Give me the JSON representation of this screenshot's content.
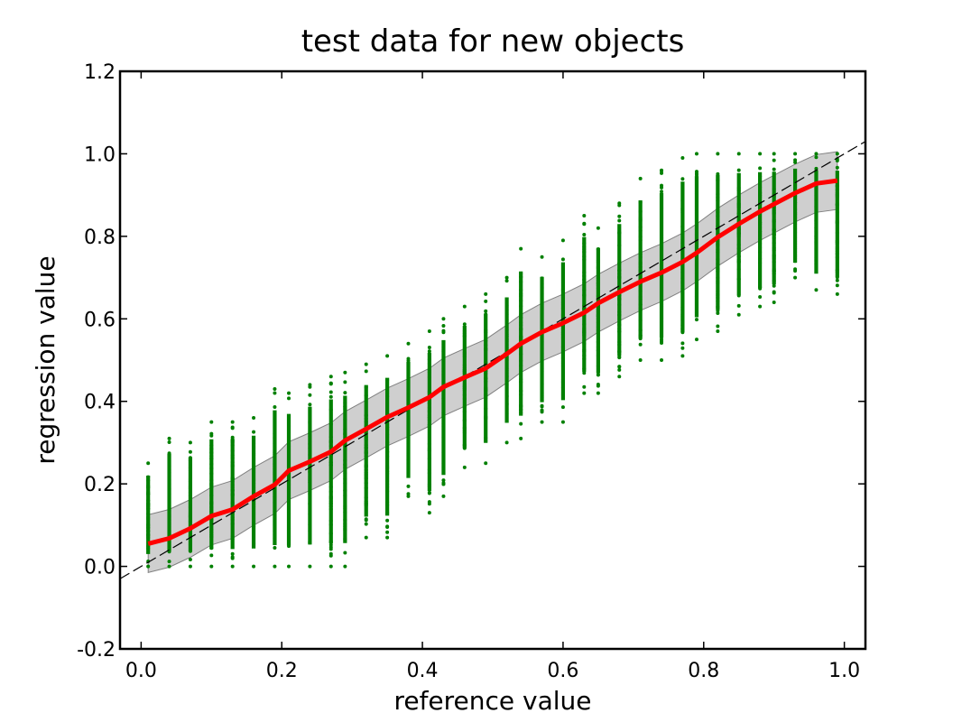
{
  "chart_data": {
    "type": "scatter",
    "title": "test data for new objects",
    "xlabel": "reference value",
    "ylabel": "regression value",
    "xlim": [
      -0.03,
      1.03
    ],
    "ylim": [
      -0.2,
      1.2
    ],
    "xticks": [
      0.0,
      0.2,
      0.4,
      0.6,
      0.8,
      1.0
    ],
    "yticks": [
      -0.2,
      0.0,
      0.2,
      0.4,
      0.6,
      0.8,
      1.0,
      1.2
    ],
    "xtick_labels": [
      "0.0",
      "0.2",
      "0.4",
      "0.6",
      "0.8",
      "1.0"
    ],
    "ytick_labels": [
      "-0.2",
      "0.0",
      "0.2",
      "0.4",
      "0.6",
      "0.8",
      "1.0",
      "1.2"
    ],
    "grid": false,
    "colors": {
      "points": "#008000",
      "mean_line": "#ff0000",
      "band_fill": "#bfbfbf",
      "band_edge": "#808080",
      "reference_line": "#000000"
    },
    "scatter_columns": [
      {
        "x": 0.01,
        "ymin": 0.0,
        "ymax": 0.25
      },
      {
        "x": 0.04,
        "ymin": 0.0,
        "ymax": 0.31
      },
      {
        "x": 0.07,
        "ymin": 0.0,
        "ymax": 0.3
      },
      {
        "x": 0.1,
        "ymin": 0.0,
        "ymax": 0.35
      },
      {
        "x": 0.13,
        "ymin": 0.0,
        "ymax": 0.35
      },
      {
        "x": 0.16,
        "ymin": 0.0,
        "ymax": 0.36
      },
      {
        "x": 0.19,
        "ymin": 0.0,
        "ymax": 0.43
      },
      {
        "x": 0.21,
        "ymin": 0.0,
        "ymax": 0.42
      },
      {
        "x": 0.24,
        "ymin": 0.0,
        "ymax": 0.44
      },
      {
        "x": 0.27,
        "ymin": 0.0,
        "ymax": 0.46
      },
      {
        "x": 0.29,
        "ymin": 0.0,
        "ymax": 0.47
      },
      {
        "x": 0.32,
        "ymin": 0.07,
        "ymax": 0.49
      },
      {
        "x": 0.35,
        "ymin": 0.07,
        "ymax": 0.51
      },
      {
        "x": 0.38,
        "ymin": 0.17,
        "ymax": 0.54
      },
      {
        "x": 0.41,
        "ymin": 0.13,
        "ymax": 0.57
      },
      {
        "x": 0.43,
        "ymin": 0.17,
        "ymax": 0.6
      },
      {
        "x": 0.46,
        "ymin": 0.24,
        "ymax": 0.63
      },
      {
        "x": 0.49,
        "ymin": 0.25,
        "ymax": 0.66
      },
      {
        "x": 0.52,
        "ymin": 0.3,
        "ymax": 0.7
      },
      {
        "x": 0.54,
        "ymin": 0.31,
        "ymax": 0.77
      },
      {
        "x": 0.57,
        "ymin": 0.35,
        "ymax": 0.75
      },
      {
        "x": 0.6,
        "ymin": 0.35,
        "ymax": 0.79
      },
      {
        "x": 0.63,
        "ymin": 0.42,
        "ymax": 0.85
      },
      {
        "x": 0.65,
        "ymin": 0.42,
        "ymax": 0.82
      },
      {
        "x": 0.68,
        "ymin": 0.46,
        "ymax": 0.88
      },
      {
        "x": 0.71,
        "ymin": 0.5,
        "ymax": 0.94
      },
      {
        "x": 0.74,
        "ymin": 0.5,
        "ymax": 0.96
      },
      {
        "x": 0.77,
        "ymin": 0.51,
        "ymax": 0.99
      },
      {
        "x": 0.79,
        "ymin": 0.55,
        "ymax": 1.0
      },
      {
        "x": 0.82,
        "ymin": 0.57,
        "ymax": 1.0
      },
      {
        "x": 0.85,
        "ymin": 0.61,
        "ymax": 1.0
      },
      {
        "x": 0.88,
        "ymin": 0.63,
        "ymax": 1.0
      },
      {
        "x": 0.9,
        "ymin": 0.64,
        "ymax": 1.0
      },
      {
        "x": 0.93,
        "ymin": 0.7,
        "ymax": 1.0
      },
      {
        "x": 0.96,
        "ymin": 0.67,
        "ymax": 1.0
      },
      {
        "x": 0.99,
        "ymin": 0.66,
        "ymax": 1.0
      }
    ],
    "mean_line": {
      "x": [
        0.01,
        0.04,
        0.07,
        0.1,
        0.13,
        0.16,
        0.19,
        0.21,
        0.24,
        0.27,
        0.29,
        0.32,
        0.35,
        0.38,
        0.41,
        0.43,
        0.46,
        0.49,
        0.52,
        0.54,
        0.57,
        0.6,
        0.63,
        0.65,
        0.68,
        0.71,
        0.74,
        0.77,
        0.79,
        0.82,
        0.85,
        0.88,
        0.9,
        0.93,
        0.96,
        0.99
      ],
      "y": [
        0.055,
        0.068,
        0.092,
        0.122,
        0.138,
        0.17,
        0.198,
        0.232,
        0.254,
        0.278,
        0.305,
        0.333,
        0.362,
        0.385,
        0.41,
        0.435,
        0.458,
        0.48,
        0.515,
        0.54,
        0.568,
        0.59,
        0.615,
        0.638,
        0.665,
        0.69,
        0.712,
        0.738,
        0.76,
        0.798,
        0.83,
        0.86,
        0.878,
        0.905,
        0.928,
        0.935
      ]
    },
    "band": {
      "x": [
        0.01,
        0.04,
        0.07,
        0.1,
        0.13,
        0.16,
        0.19,
        0.21,
        0.24,
        0.27,
        0.29,
        0.32,
        0.35,
        0.38,
        0.41,
        0.43,
        0.46,
        0.49,
        0.52,
        0.54,
        0.57,
        0.6,
        0.63,
        0.65,
        0.68,
        0.71,
        0.74,
        0.77,
        0.79,
        0.82,
        0.85,
        0.88,
        0.9,
        0.93,
        0.96,
        0.99
      ],
      "upper": [
        0.125,
        0.138,
        0.162,
        0.192,
        0.208,
        0.24,
        0.268,
        0.302,
        0.324,
        0.348,
        0.375,
        0.403,
        0.432,
        0.455,
        0.48,
        0.505,
        0.528,
        0.55,
        0.585,
        0.61,
        0.638,
        0.66,
        0.685,
        0.708,
        0.735,
        0.76,
        0.782,
        0.808,
        0.83,
        0.868,
        0.9,
        0.93,
        0.948,
        0.975,
        0.998,
        1.005
      ],
      "lower": [
        -0.015,
        -0.002,
        0.022,
        0.052,
        0.068,
        0.1,
        0.128,
        0.162,
        0.184,
        0.208,
        0.235,
        0.263,
        0.292,
        0.315,
        0.34,
        0.365,
        0.388,
        0.41,
        0.445,
        0.47,
        0.498,
        0.52,
        0.545,
        0.568,
        0.595,
        0.62,
        0.642,
        0.668,
        0.69,
        0.728,
        0.76,
        0.79,
        0.808,
        0.835,
        0.858,
        0.865
      ]
    },
    "reference_line": {
      "x": [
        -0.03,
        1.03
      ],
      "y": [
        -0.03,
        1.03
      ]
    }
  }
}
